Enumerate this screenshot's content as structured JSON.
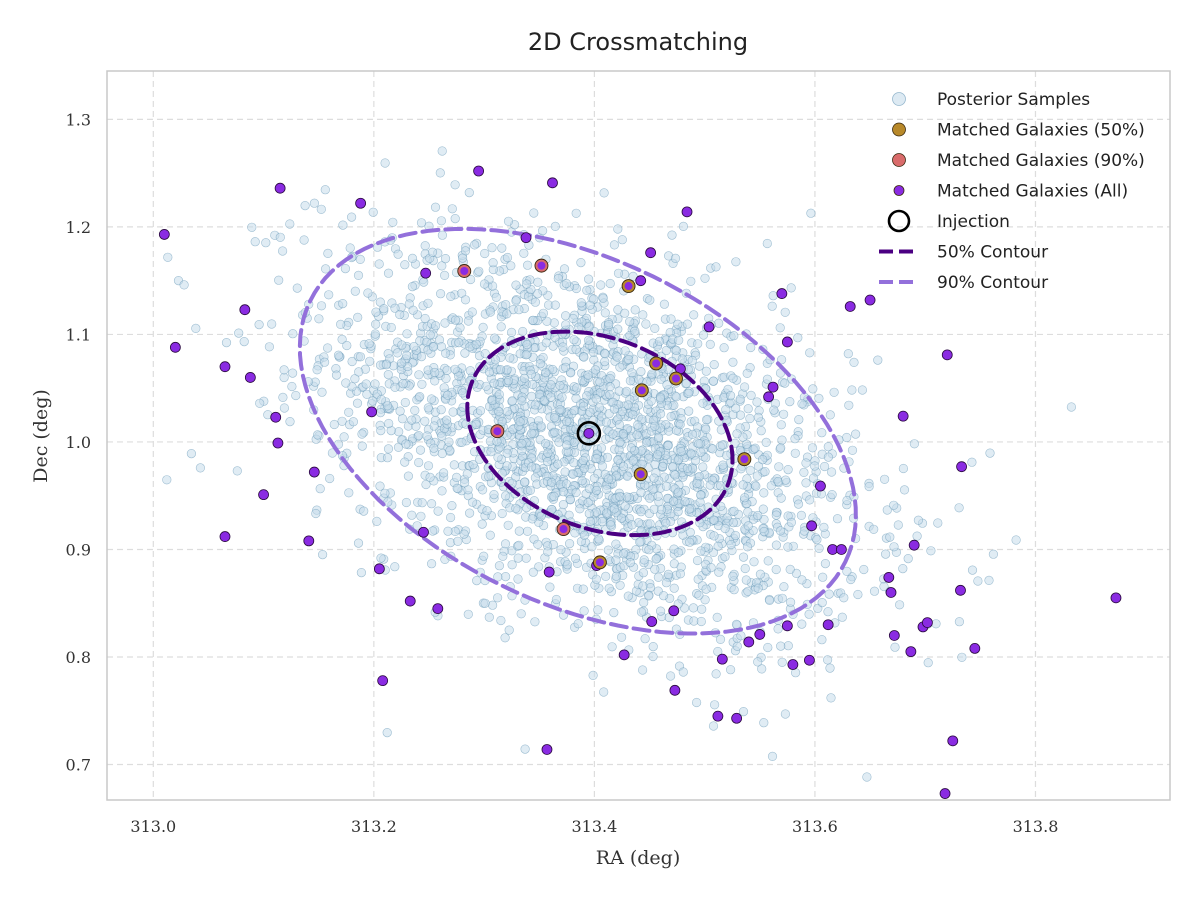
{
  "chart_data": {
    "type": "scatter",
    "title": "2D Crossmatching",
    "xlabel": "RA (deg)",
    "ylabel": "Dec (deg)",
    "xlim": [
      312.958,
      313.922
    ],
    "ylim": [
      0.667,
      1.345
    ],
    "xticks": [
      313.0,
      313.2,
      313.4,
      313.6,
      313.8
    ],
    "xtick_labels": [
      "313.0",
      "313.2",
      "313.4",
      "313.6",
      "313.8"
    ],
    "yticks": [
      0.7,
      0.8,
      0.9,
      1.0,
      1.1,
      1.2,
      1.3
    ],
    "ytick_labels": [
      "0.7",
      "0.8",
      "0.9",
      "1.0",
      "1.1",
      "1.2",
      "1.3"
    ],
    "grid": true,
    "legend_position": "top-right",
    "legend": [
      {
        "label": "Posterior Samples",
        "kind": "marker",
        "color": "#c6dceb"
      },
      {
        "label": "Matched Galaxies (50%)",
        "kind": "marker",
        "color": "#b8892a"
      },
      {
        "label": "Matched Galaxies (90%)",
        "kind": "marker",
        "color": "#d96b6b"
      },
      {
        "label": "Matched Galaxies (All)",
        "kind": "marker",
        "color": "#8a2be2"
      },
      {
        "label": "Injection",
        "kind": "ring",
        "color": "#000000"
      },
      {
        "label": "50% Contour",
        "kind": "line",
        "color": "#4b0082"
      },
      {
        "label": "90% Contour",
        "kind": "line",
        "color": "#9370db"
      }
    ],
    "posterior_samples": {
      "count": 2500,
      "mean": [
        313.398,
        1.004
      ],
      "std": [
        0.12,
        0.09
      ],
      "correlation": -0.45,
      "color": "#c6dceb"
    },
    "injection": {
      "x": 313.395,
      "y": 1.008
    },
    "contours": [
      {
        "name": "50% Contour",
        "center": [
          313.405,
          1.008
        ],
        "semi_axes": [
          0.125,
          0.088
        ],
        "angle_deg": -22,
        "color": "#4b0082"
      },
      {
        "name": "90% Contour",
        "center": [
          313.385,
          1.01
        ],
        "semi_axes": [
          0.27,
          0.16
        ],
        "angle_deg": -26,
        "color": "#9370db"
      }
    ],
    "matched_galaxies": [
      {
        "x": 313.01,
        "y": 1.193,
        "group": "all"
      },
      {
        "x": 313.02,
        "y": 1.088,
        "group": "all"
      },
      {
        "x": 313.065,
        "y": 0.912,
        "group": "all"
      },
      {
        "x": 313.065,
        "y": 1.07,
        "group": "all"
      },
      {
        "x": 313.088,
        "y": 1.06,
        "group": "all"
      },
      {
        "x": 313.083,
        "y": 1.123,
        "group": "all"
      },
      {
        "x": 313.115,
        "y": 1.236,
        "group": "all"
      },
      {
        "x": 313.111,
        "y": 1.023,
        "group": "all"
      },
      {
        "x": 313.113,
        "y": 0.999,
        "group": "all"
      },
      {
        "x": 313.1,
        "y": 0.951,
        "group": "all"
      },
      {
        "x": 313.141,
        "y": 0.908,
        "group": "all"
      },
      {
        "x": 313.146,
        "y": 0.972,
        "group": "all"
      },
      {
        "x": 313.188,
        "y": 1.222,
        "group": "all"
      },
      {
        "x": 313.198,
        "y": 1.028,
        "group": "all"
      },
      {
        "x": 313.205,
        "y": 0.882,
        "group": "all"
      },
      {
        "x": 313.208,
        "y": 0.778,
        "group": "all"
      },
      {
        "x": 313.233,
        "y": 0.852,
        "group": "all"
      },
      {
        "x": 313.247,
        "y": 1.157,
        "group": "all"
      },
      {
        "x": 313.245,
        "y": 0.916,
        "group": "all"
      },
      {
        "x": 313.258,
        "y": 0.845,
        "group": "all"
      },
      {
        "x": 313.282,
        "y": 1.159,
        "group": "90"
      },
      {
        "x": 313.295,
        "y": 1.252,
        "group": "all"
      },
      {
        "x": 313.312,
        "y": 1.01,
        "group": "90"
      },
      {
        "x": 313.338,
        "y": 1.19,
        "group": "all"
      },
      {
        "x": 313.352,
        "y": 1.164,
        "group": "90"
      },
      {
        "x": 313.362,
        "y": 1.241,
        "group": "all"
      },
      {
        "x": 313.359,
        "y": 0.879,
        "group": "all"
      },
      {
        "x": 313.357,
        "y": 0.714,
        "group": "all"
      },
      {
        "x": 313.372,
        "y": 0.919,
        "group": "90"
      },
      {
        "x": 313.405,
        "y": 0.888,
        "group": "50"
      },
      {
        "x": 313.402,
        "y": 0.885,
        "group": "all"
      },
      {
        "x": 313.427,
        "y": 0.802,
        "group": "all"
      },
      {
        "x": 313.431,
        "y": 1.145,
        "group": "50"
      },
      {
        "x": 313.442,
        "y": 1.15,
        "group": "all"
      },
      {
        "x": 313.443,
        "y": 1.048,
        "group": "50"
      },
      {
        "x": 313.442,
        "y": 0.97,
        "group": "50"
      },
      {
        "x": 313.451,
        "y": 1.176,
        "group": "all"
      },
      {
        "x": 313.452,
        "y": 0.833,
        "group": "all"
      },
      {
        "x": 313.456,
        "y": 1.073,
        "group": "50"
      },
      {
        "x": 313.474,
        "y": 1.059,
        "group": "50"
      },
      {
        "x": 313.478,
        "y": 1.068,
        "group": "all"
      },
      {
        "x": 313.473,
        "y": 0.769,
        "group": "all"
      },
      {
        "x": 313.472,
        "y": 0.843,
        "group": "all"
      },
      {
        "x": 313.484,
        "y": 1.214,
        "group": "all"
      },
      {
        "x": 313.504,
        "y": 1.107,
        "group": "all"
      },
      {
        "x": 313.516,
        "y": 0.798,
        "group": "all"
      },
      {
        "x": 313.512,
        "y": 0.745,
        "group": "all"
      },
      {
        "x": 313.529,
        "y": 0.743,
        "group": "all"
      },
      {
        "x": 313.536,
        "y": 0.984,
        "group": "50"
      },
      {
        "x": 313.54,
        "y": 0.814,
        "group": "all"
      },
      {
        "x": 313.55,
        "y": 0.821,
        "group": "all"
      },
      {
        "x": 313.558,
        "y": 1.042,
        "group": "all"
      },
      {
        "x": 313.562,
        "y": 1.051,
        "group": "all"
      },
      {
        "x": 313.57,
        "y": 1.138,
        "group": "all"
      },
      {
        "x": 313.575,
        "y": 1.093,
        "group": "all"
      },
      {
        "x": 313.575,
        "y": 0.829,
        "group": "all"
      },
      {
        "x": 313.58,
        "y": 0.793,
        "group": "all"
      },
      {
        "x": 313.595,
        "y": 0.797,
        "group": "all"
      },
      {
        "x": 313.597,
        "y": 0.922,
        "group": "all"
      },
      {
        "x": 313.605,
        "y": 0.959,
        "group": "all"
      },
      {
        "x": 313.616,
        "y": 0.9,
        "group": "all"
      },
      {
        "x": 313.612,
        "y": 0.83,
        "group": "all"
      },
      {
        "x": 313.624,
        "y": 0.9,
        "group": "all"
      },
      {
        "x": 313.632,
        "y": 1.126,
        "group": "all"
      },
      {
        "x": 313.65,
        "y": 1.132,
        "group": "all"
      },
      {
        "x": 313.669,
        "y": 0.86,
        "group": "all"
      },
      {
        "x": 313.667,
        "y": 0.874,
        "group": "all"
      },
      {
        "x": 313.672,
        "y": 0.82,
        "group": "all"
      },
      {
        "x": 313.68,
        "y": 1.024,
        "group": "all"
      },
      {
        "x": 313.687,
        "y": 0.805,
        "group": "all"
      },
      {
        "x": 313.69,
        "y": 0.904,
        "group": "all"
      },
      {
        "x": 313.698,
        "y": 0.828,
        "group": "all"
      },
      {
        "x": 313.702,
        "y": 0.832,
        "group": "all"
      },
      {
        "x": 313.718,
        "y": 0.673,
        "group": "all"
      },
      {
        "x": 313.72,
        "y": 1.081,
        "group": "all"
      },
      {
        "x": 313.725,
        "y": 0.722,
        "group": "all"
      },
      {
        "x": 313.733,
        "y": 0.977,
        "group": "all"
      },
      {
        "x": 313.732,
        "y": 0.862,
        "group": "all"
      },
      {
        "x": 313.745,
        "y": 0.808,
        "group": "all"
      },
      {
        "x": 313.873,
        "y": 0.855,
        "group": "all"
      }
    ]
  }
}
